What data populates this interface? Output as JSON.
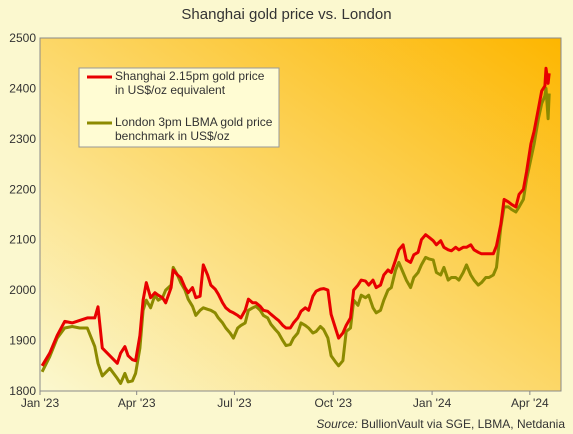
{
  "chart_data": {
    "type": "line",
    "title": "Shanghai gold price vs. London",
    "xlabel": "",
    "ylabel": "",
    "ylim": [
      1800,
      2500
    ],
    "yticks": [
      1800,
      1900,
      2000,
      2100,
      2200,
      2300,
      2400,
      2500
    ],
    "x_ticks": [
      {
        "label": "Jan '23",
        "date": "2023-01-01"
      },
      {
        "label": "Apr '23",
        "date": "2023-04-01"
      },
      {
        "label": "Jul '23",
        "date": "2023-07-01"
      },
      {
        "label": "Oct '23",
        "date": "2023-10-01"
      },
      {
        "label": "Jan '24",
        "date": "2024-01-01"
      },
      {
        "label": "Apr '24",
        "date": "2024-04-01"
      }
    ],
    "xlim": [
      "2023-01-01",
      "2024-04-30"
    ],
    "grid": false,
    "legend_placement": "top-left",
    "background_gradient": [
      "#fdb600",
      "#fbf8cf"
    ],
    "series": [
      {
        "name": "Shanghai 2.15pm gold price in US$/oz equivalent",
        "color": "#e80000",
        "points": [
          [
            "2023-01-03",
            1850
          ],
          [
            "2023-01-10",
            1875
          ],
          [
            "2023-01-17",
            1910
          ],
          [
            "2023-01-24",
            1938
          ],
          [
            "2023-01-31",
            1935
          ],
          [
            "2023-02-07",
            1940
          ],
          [
            "2023-02-14",
            1945
          ],
          [
            "2023-02-21",
            1945
          ],
          [
            "2023-02-24",
            1967
          ],
          [
            "2023-02-28",
            1885
          ],
          [
            "2023-03-07",
            1870
          ],
          [
            "2023-03-14",
            1855
          ],
          [
            "2023-03-17",
            1875
          ],
          [
            "2023-03-21",
            1888
          ],
          [
            "2023-03-24",
            1870
          ],
          [
            "2023-03-28",
            1862
          ],
          [
            "2023-03-31",
            1860
          ],
          [
            "2023-04-04",
            1910
          ],
          [
            "2023-04-07",
            1980
          ],
          [
            "2023-04-10",
            2015
          ],
          [
            "2023-04-14",
            1985
          ],
          [
            "2023-04-18",
            1995
          ],
          [
            "2023-04-21",
            1990
          ],
          [
            "2023-04-25",
            1985
          ],
          [
            "2023-04-28",
            1975
          ],
          [
            "2023-05-03",
            2005
          ],
          [
            "2023-05-05",
            2040
          ],
          [
            "2023-05-09",
            2030
          ],
          [
            "2023-05-12",
            2025
          ],
          [
            "2023-05-16",
            2005
          ],
          [
            "2023-05-19",
            1995
          ],
          [
            "2023-05-23",
            2005
          ],
          [
            "2023-05-26",
            1985
          ],
          [
            "2023-05-30",
            1988
          ],
          [
            "2023-06-02",
            2050
          ],
          [
            "2023-06-06",
            2030
          ],
          [
            "2023-06-09",
            2010
          ],
          [
            "2023-06-13",
            2002
          ],
          [
            "2023-06-16",
            1992
          ],
          [
            "2023-06-20",
            1975
          ],
          [
            "2023-06-23",
            1965
          ],
          [
            "2023-06-27",
            1958
          ],
          [
            "2023-06-30",
            1955
          ],
          [
            "2023-07-04",
            1950
          ],
          [
            "2023-07-07",
            1945
          ],
          [
            "2023-07-11",
            1960
          ],
          [
            "2023-07-14",
            1982
          ],
          [
            "2023-07-18",
            1975
          ],
          [
            "2023-07-21",
            1975
          ],
          [
            "2023-07-25",
            1968
          ],
          [
            "2023-07-28",
            1960
          ],
          [
            "2023-08-01",
            1958
          ],
          [
            "2023-08-04",
            1952
          ],
          [
            "2023-08-08",
            1945
          ],
          [
            "2023-08-11",
            1940
          ],
          [
            "2023-08-15",
            1930
          ],
          [
            "2023-08-18",
            1925
          ],
          [
            "2023-08-22",
            1925
          ],
          [
            "2023-08-25",
            1935
          ],
          [
            "2023-08-29",
            1945
          ],
          [
            "2023-09-01",
            1958
          ],
          [
            "2023-09-05",
            1965
          ],
          [
            "2023-09-08",
            1960
          ],
          [
            "2023-09-12",
            1988
          ],
          [
            "2023-09-15",
            1998
          ],
          [
            "2023-09-19",
            2002
          ],
          [
            "2023-09-22",
            2003
          ],
          [
            "2023-09-26",
            2000
          ],
          [
            "2023-09-29",
            1952
          ],
          [
            "2023-10-03",
            1925
          ],
          [
            "2023-10-06",
            1905
          ],
          [
            "2023-10-10",
            1915
          ],
          [
            "2023-10-13",
            1930
          ],
          [
            "2023-10-17",
            1945
          ],
          [
            "2023-10-20",
            2000
          ],
          [
            "2023-10-24",
            2010
          ],
          [
            "2023-10-27",
            2020
          ],
          [
            "2023-10-31",
            2018
          ],
          [
            "2023-11-03",
            2010
          ],
          [
            "2023-11-07",
            2020
          ],
          [
            "2023-11-10",
            2005
          ],
          [
            "2023-11-14",
            2010
          ],
          [
            "2023-11-17",
            2030
          ],
          [
            "2023-11-21",
            2040
          ],
          [
            "2023-11-24",
            2035
          ],
          [
            "2023-11-28",
            2060
          ],
          [
            "2023-12-01",
            2080
          ],
          [
            "2023-12-05",
            2090
          ],
          [
            "2023-12-08",
            2060
          ],
          [
            "2023-12-12",
            2055
          ],
          [
            "2023-12-15",
            2070
          ],
          [
            "2023-12-19",
            2075
          ],
          [
            "2023-12-22",
            2100
          ],
          [
            "2023-12-26",
            2110
          ],
          [
            "2023-12-29",
            2105
          ],
          [
            "2024-01-02",
            2098
          ],
          [
            "2024-01-05",
            2090
          ],
          [
            "2024-01-09",
            2098
          ],
          [
            "2024-01-12",
            2085
          ],
          [
            "2024-01-16",
            2080
          ],
          [
            "2024-01-19",
            2078
          ],
          [
            "2024-01-23",
            2085
          ],
          [
            "2024-01-26",
            2080
          ],
          [
            "2024-01-30",
            2085
          ],
          [
            "2024-02-02",
            2085
          ],
          [
            "2024-02-06",
            2090
          ],
          [
            "2024-02-09",
            2080
          ],
          [
            "2024-02-13",
            2075
          ],
          [
            "2024-02-16",
            2072
          ],
          [
            "2024-02-20",
            2072
          ],
          [
            "2024-02-23",
            2072
          ],
          [
            "2024-02-27",
            2072
          ],
          [
            "2024-03-01",
            2088
          ],
          [
            "2024-03-05",
            2130
          ],
          [
            "2024-03-08",
            2180
          ],
          [
            "2024-03-12",
            2175
          ],
          [
            "2024-03-15",
            2170
          ],
          [
            "2024-03-19",
            2165
          ],
          [
            "2024-03-22",
            2190
          ],
          [
            "2024-03-26",
            2200
          ],
          [
            "2024-03-29",
            2235
          ],
          [
            "2024-04-02",
            2290
          ],
          [
            "2024-04-05",
            2315
          ],
          [
            "2024-04-09",
            2360
          ],
          [
            "2024-04-12",
            2395
          ],
          [
            "2024-04-15",
            2405
          ],
          [
            "2024-04-16",
            2440
          ],
          [
            "2024-04-18",
            2410
          ],
          [
            "2024-04-19",
            2430
          ]
        ]
      },
      {
        "name": "London 3pm LBMA gold price benchmark in US$/oz",
        "color": "#8c8a00",
        "points": [
          [
            "2023-01-03",
            1838
          ],
          [
            "2023-01-10",
            1868
          ],
          [
            "2023-01-17",
            1905
          ],
          [
            "2023-01-24",
            1925
          ],
          [
            "2023-01-31",
            1928
          ],
          [
            "2023-02-07",
            1925
          ],
          [
            "2023-02-14",
            1925
          ],
          [
            "2023-02-21",
            1888
          ],
          [
            "2023-02-24",
            1855
          ],
          [
            "2023-02-28",
            1830
          ],
          [
            "2023-03-07",
            1845
          ],
          [
            "2023-03-14",
            1825
          ],
          [
            "2023-03-17",
            1815
          ],
          [
            "2023-03-21",
            1835
          ],
          [
            "2023-03-24",
            1818
          ],
          [
            "2023-03-28",
            1820
          ],
          [
            "2023-03-31",
            1835
          ],
          [
            "2023-04-04",
            1885
          ],
          [
            "2023-04-07",
            1960
          ],
          [
            "2023-04-10",
            1980
          ],
          [
            "2023-04-14",
            1965
          ],
          [
            "2023-04-18",
            1990
          ],
          [
            "2023-04-21",
            1980
          ],
          [
            "2023-04-25",
            1985
          ],
          [
            "2023-04-28",
            2000
          ],
          [
            "2023-05-03",
            2010
          ],
          [
            "2023-05-05",
            2045
          ],
          [
            "2023-05-09",
            2030
          ],
          [
            "2023-05-12",
            2015
          ],
          [
            "2023-05-16",
            2000
          ],
          [
            "2023-05-19",
            1982
          ],
          [
            "2023-05-23",
            1968
          ],
          [
            "2023-05-26",
            1950
          ],
          [
            "2023-05-30",
            1960
          ],
          [
            "2023-06-02",
            1965
          ],
          [
            "2023-06-06",
            1962
          ],
          [
            "2023-06-09",
            1960
          ],
          [
            "2023-06-13",
            1955
          ],
          [
            "2023-06-16",
            1945
          ],
          [
            "2023-06-20",
            1935
          ],
          [
            "2023-06-23",
            1925
          ],
          [
            "2023-06-27",
            1915
          ],
          [
            "2023-06-30",
            1905
          ],
          [
            "2023-07-04",
            1925
          ],
          [
            "2023-07-07",
            1930
          ],
          [
            "2023-07-11",
            1935
          ],
          [
            "2023-07-14",
            1960
          ],
          [
            "2023-07-18",
            1965
          ],
          [
            "2023-07-21",
            1968
          ],
          [
            "2023-07-25",
            1960
          ],
          [
            "2023-07-28",
            1950
          ],
          [
            "2023-08-01",
            1945
          ],
          [
            "2023-08-04",
            1932
          ],
          [
            "2023-08-08",
            1922
          ],
          [
            "2023-08-11",
            1915
          ],
          [
            "2023-08-15",
            1900
          ],
          [
            "2023-08-18",
            1890
          ],
          [
            "2023-08-22",
            1892
          ],
          [
            "2023-08-25",
            1905
          ],
          [
            "2023-08-29",
            1915
          ],
          [
            "2023-09-01",
            1935
          ],
          [
            "2023-09-05",
            1930
          ],
          [
            "2023-09-08",
            1925
          ],
          [
            "2023-09-12",
            1915
          ],
          [
            "2023-09-15",
            1918
          ],
          [
            "2023-09-19",
            1928
          ],
          [
            "2023-09-22",
            1922
          ],
          [
            "2023-09-26",
            1905
          ],
          [
            "2023-09-29",
            1870
          ],
          [
            "2023-10-03",
            1858
          ],
          [
            "2023-10-06",
            1850
          ],
          [
            "2023-10-10",
            1860
          ],
          [
            "2023-10-13",
            1918
          ],
          [
            "2023-10-17",
            1925
          ],
          [
            "2023-10-20",
            1980
          ],
          [
            "2023-10-24",
            1970
          ],
          [
            "2023-10-27",
            1990
          ],
          [
            "2023-10-31",
            1985
          ],
          [
            "2023-11-03",
            1990
          ],
          [
            "2023-11-07",
            1965
          ],
          [
            "2023-11-10",
            1955
          ],
          [
            "2023-11-14",
            1960
          ],
          [
            "2023-11-17",
            1980
          ],
          [
            "2023-11-21",
            2000
          ],
          [
            "2023-11-24",
            2005
          ],
          [
            "2023-11-28",
            2040
          ],
          [
            "2023-12-01",
            2055
          ],
          [
            "2023-12-05",
            2035
          ],
          [
            "2023-12-08",
            2020
          ],
          [
            "2023-12-12",
            2005
          ],
          [
            "2023-12-15",
            2025
          ],
          [
            "2023-12-19",
            2035
          ],
          [
            "2023-12-22",
            2050
          ],
          [
            "2023-12-26",
            2065
          ],
          [
            "2023-12-29",
            2062
          ],
          [
            "2024-01-02",
            2060
          ],
          [
            "2024-01-05",
            2035
          ],
          [
            "2024-01-09",
            2030
          ],
          [
            "2024-01-12",
            2045
          ],
          [
            "2024-01-16",
            2020
          ],
          [
            "2024-01-19",
            2025
          ],
          [
            "2024-01-23",
            2025
          ],
          [
            "2024-01-26",
            2020
          ],
          [
            "2024-01-30",
            2035
          ],
          [
            "2024-02-02",
            2050
          ],
          [
            "2024-02-06",
            2030
          ],
          [
            "2024-02-09",
            2020
          ],
          [
            "2024-02-13",
            2010
          ],
          [
            "2024-02-16",
            2015
          ],
          [
            "2024-02-20",
            2025
          ],
          [
            "2024-02-23",
            2025
          ],
          [
            "2024-02-27",
            2030
          ],
          [
            "2024-03-01",
            2045
          ],
          [
            "2024-03-05",
            2125
          ],
          [
            "2024-03-08",
            2165
          ],
          [
            "2024-03-12",
            2165
          ],
          [
            "2024-03-15",
            2160
          ],
          [
            "2024-03-19",
            2155
          ],
          [
            "2024-03-22",
            2165
          ],
          [
            "2024-03-26",
            2180
          ],
          [
            "2024-03-29",
            2220
          ],
          [
            "2024-04-02",
            2260
          ],
          [
            "2024-04-05",
            2290
          ],
          [
            "2024-04-09",
            2340
          ],
          [
            "2024-04-12",
            2370
          ],
          [
            "2024-04-15",
            2385
          ],
          [
            "2024-04-16",
            2400
          ],
          [
            "2024-04-18",
            2340
          ],
          [
            "2024-04-19",
            2390
          ]
        ]
      }
    ],
    "source": {
      "label": "Source:",
      "text": " BullionVault via SGE, LBMA, Netdania"
    }
  }
}
